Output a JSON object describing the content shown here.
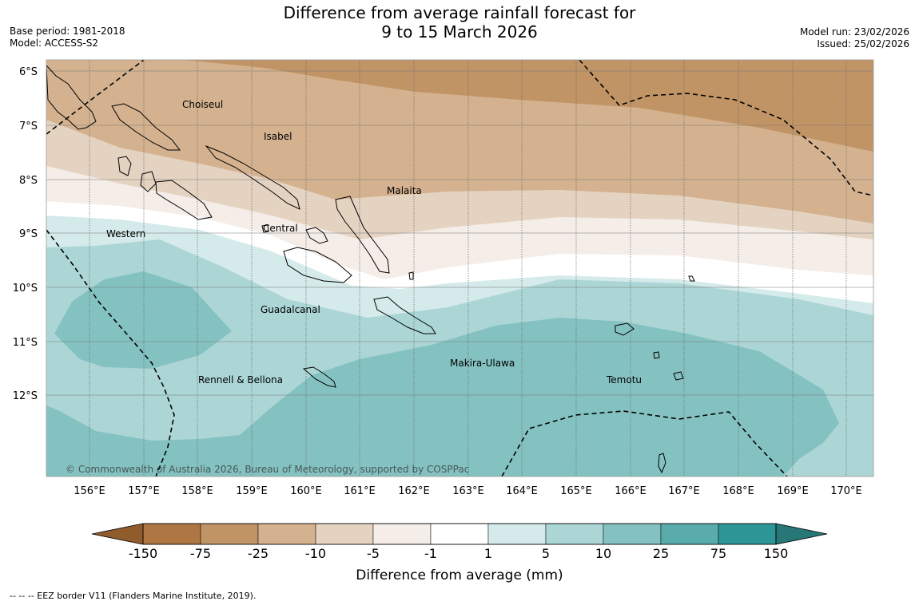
{
  "title_line1": "Difference from average rainfall forecast for",
  "title_line2": "9 to 15 March 2026",
  "base_period": "Base period: 1981-2018",
  "model": "Model: ACCESS-S2",
  "model_run": "Model run: 23/02/2026",
  "issued": "Issued: 25/02/2026",
  "copyright": "© Commonwealth of Australia 2026, Bureau of Meteorology, supported by COSPPac",
  "footnote": "-- -- -- EEZ border V11 (Flanders Marine Institute, 2019).",
  "lat_labels": [
    "6°S",
    "7°S",
    "8°S",
    "9°S",
    "10°S",
    "11°S",
    "12°S"
  ],
  "lon_labels": [
    "156°E",
    "157°E",
    "158°E",
    "159°E",
    "160°E",
    "161°E",
    "162°E",
    "163°E",
    "164°E",
    "165°E",
    "166°E",
    "167°E",
    "168°E",
    "169°E",
    "170°E"
  ],
  "regions": [
    "Choiseul",
    "Isabel",
    "Malaita",
    "Central",
    "Western",
    "Guadalcanal",
    "Rennell & Bellona",
    "Makira-Ulawa",
    "Temotu"
  ],
  "colorbar": {
    "label": "Difference from average (mm)",
    "ticks": [
      "-150",
      "-75",
      "-25",
      "-10",
      "-5",
      "-1",
      "1",
      "5",
      "10",
      "25",
      "75",
      "150"
    ],
    "colors": [
      "#ad7642",
      "#c19466",
      "#d4b28f",
      "#e5d3c2",
      "#f5ede8",
      "#ffffff",
      "#d5eaea",
      "#acd6d6",
      "#84c2c1",
      "#5aabab",
      "#2e9696"
    ],
    "under_color": "#915c2c",
    "over_color": "#277777"
  },
  "colors": {
    "dry_strong": "#c19466",
    "dry_mid": "#d4b28f",
    "dry_light": "#e5d3c2",
    "dry_faint": "#f5ede8",
    "neutral": "#ffffff",
    "wet_faint": "#d5eaea",
    "wet_light": "#acd6d6",
    "wet_mid": "#84c2c1"
  }
}
